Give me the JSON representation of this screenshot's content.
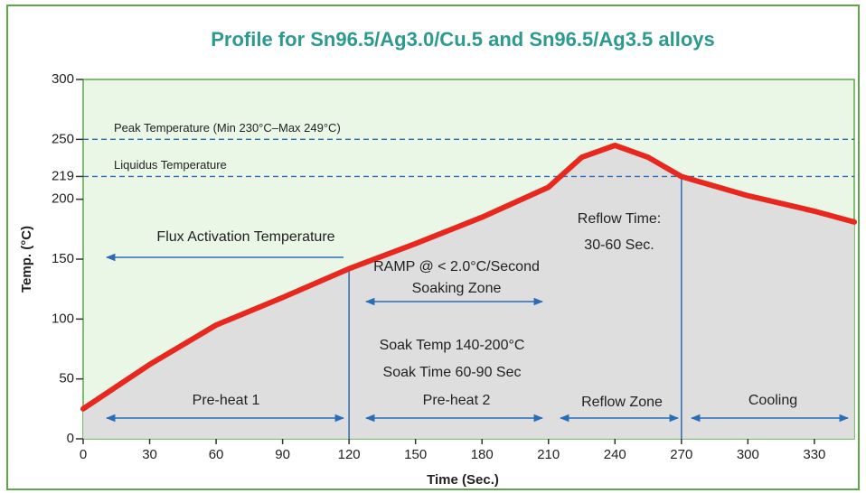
{
  "chart_data": {
    "type": "line",
    "title": "Profile for Sn96.5/Ag3.0/Cu.5 and Sn96.5/Ag3.5 alloys",
    "x_label": "Time (Sec.)",
    "y_label": "Temp. (°C)",
    "x": [
      0,
      30,
      60,
      90,
      120,
      150,
      180,
      210,
      225,
      240,
      255,
      270,
      300,
      330,
      348
    ],
    "series": [
      {
        "name": "Temperature",
        "color": "#e8281e",
        "values": [
          25,
          62,
          95,
          118,
          142,
          163,
          185,
          210,
          235,
          245,
          235,
          219,
          203,
          190,
          181
        ]
      }
    ],
    "xlim": [
      0,
      348
    ],
    "xticks": [
      0,
      30,
      60,
      90,
      120,
      150,
      180,
      210,
      240,
      270,
      300,
      330
    ],
    "ylim": [
      0,
      300
    ],
    "yticks": [
      0,
      50,
      100,
      150,
      200,
      219,
      250,
      300
    ],
    "reference_lines": [
      {
        "value": 250,
        "label": "Peak Temperature (Min 230°C–Max 249°C)"
      },
      {
        "value": 219,
        "label": "Liquidus Temperature"
      }
    ],
    "vlines": [
      120,
      270
    ],
    "annotations": [
      "Flux Activation Temperature",
      "RAMP @ < 2.0°C/Second",
      "Soaking Zone",
      "Soak Temp 140-200°C",
      "Soak Time 60-90 Sec",
      "Reflow Time:",
      "30-60 Sec.",
      "Pre-heat 1",
      "Pre-heat 2",
      "Reflow Zone",
      "Cooling"
    ]
  }
}
